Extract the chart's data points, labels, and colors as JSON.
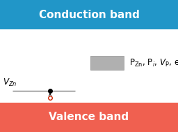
{
  "cb_color": "#2196c8",
  "vb_color": "#f06050",
  "cb_text": "Conduction band",
  "vb_text": "Valence band",
  "band_text_color": "#ffffff",
  "band_text_fontsize": 11,
  "bg_color": "#ffffff",
  "gray_rect_color": "#b0b0b0",
  "legend_text": "P$_{\\mathregular{Zn}}$, P$_i$, $V_{\\mathregular{P}}$, etc",
  "legend_fontsize": 8.5,
  "vzn_label": "$V_{\\mathregular{Zn}}$",
  "vzn_fontsize": 8.5
}
